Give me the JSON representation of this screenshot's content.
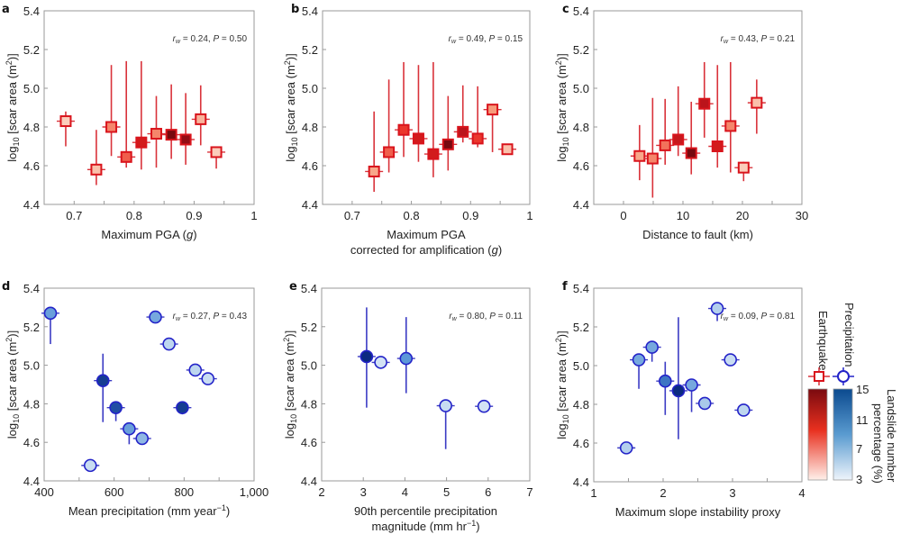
{
  "figure": {
    "legend": {
      "earthquake_label": "Earthquake",
      "precipitation_label": "Precipitation",
      "colorbar_label_line1": "Landslide number",
      "colorbar_label_line2": "percentage (%)",
      "colorbar_ticks": [
        "15",
        "11",
        "7",
        "3"
      ],
      "colorbar_range": [
        3,
        15
      ],
      "earthquake_colors": [
        "#fff0ea",
        "#7a0a0f"
      ],
      "precipitation_colors": [
        "#eef4fb",
        "#0b4a8f"
      ]
    },
    "colors": {
      "eq_border": "#d9141c",
      "eq_errbar": "#d9323a",
      "pr_border": "#2323c8",
      "pr_errbar": "#3b3bc4",
      "frame": "#9a9a9a"
    }
  },
  "chart_data": [
    {
      "panel": "a",
      "type": "scatter",
      "marker": "square",
      "xlabel": "Maximum PGA (g)",
      "xlabel_parts": [
        "Maximum PGA (",
        "g",
        ")"
      ],
      "ylabel": "log10 [scar area (m2)]",
      "xlim": [
        0.65,
        1.0
      ],
      "ylim": [
        4.4,
        5.4
      ],
      "xticks": [
        0.7,
        0.8,
        0.9,
        1
      ],
      "xtick_labels": [
        "0.7",
        "0.8",
        "0.9",
        "1"
      ],
      "xminor": [
        0.75,
        0.85,
        0.95
      ],
      "yticks": [
        4.4,
        4.6,
        4.8,
        5.0,
        5.2,
        5.4
      ],
      "ytick_labels": [
        "4.4",
        "4.6",
        "4.8",
        "5.0",
        "5.2",
        "5.4"
      ],
      "stat_r": "0.24",
      "stat_p": "0.50",
      "points": [
        {
          "x": 0.686,
          "y": 4.83,
          "ylo": 4.7,
          "yhi": 4.88,
          "shade": 0.1
        },
        {
          "x": 0.737,
          "y": 4.58,
          "ylo": 4.5,
          "yhi": 4.785,
          "shade": 0.15
        },
        {
          "x": 0.762,
          "y": 4.8,
          "ylo": 4.65,
          "yhi": 5.12,
          "shade": 0.35
        },
        {
          "x": 0.787,
          "y": 4.645,
          "ylo": 4.59,
          "yhi": 5.14,
          "shade": 0.45
        },
        {
          "x": 0.812,
          "y": 4.72,
          "ylo": 4.58,
          "yhi": 5.14,
          "shade": 0.7
        },
        {
          "x": 0.837,
          "y": 4.765,
          "ylo": 4.59,
          "yhi": 4.96,
          "shade": 0.35
        },
        {
          "x": 0.862,
          "y": 4.76,
          "ylo": 4.635,
          "yhi": 5.02,
          "shade": 0.95
        },
        {
          "x": 0.886,
          "y": 4.735,
          "ylo": 4.605,
          "yhi": 4.975,
          "shade": 0.9
        },
        {
          "x": 0.911,
          "y": 4.84,
          "ylo": 4.705,
          "yhi": 5.015,
          "shade": 0.2
        },
        {
          "x": 0.937,
          "y": 4.67,
          "ylo": 4.585,
          "yhi": 4.7,
          "shade": 0.1
        }
      ]
    },
    {
      "panel": "b",
      "type": "scatter",
      "marker": "square",
      "xlabel": "Maximum PGA corrected for amplification (g)",
      "xlabel_line1": "Maximum PGA",
      "xlabel_parts": [
        "corrected for amplification (",
        "g",
        ")"
      ],
      "ylabel": "log10 [scar area (m2)]",
      "xlim": [
        0.65,
        1.0
      ],
      "ylim": [
        4.4,
        5.4
      ],
      "xticks": [
        0.7,
        0.8,
        0.9,
        1
      ],
      "xtick_labels": [
        "0.7",
        "0.8",
        "0.9",
        "1"
      ],
      "xminor": [
        0.75,
        0.85,
        0.95
      ],
      "yticks": [
        4.4,
        4.6,
        4.8,
        5.0,
        5.2,
        5.4
      ],
      "ytick_labels": [
        "4.4",
        "4.6",
        "4.8",
        "5.0",
        "5.2",
        "5.4"
      ],
      "stat_r": "0.49",
      "stat_p": "0.15",
      "points": [
        {
          "x": 0.737,
          "y": 4.57,
          "ylo": 4.465,
          "yhi": 4.88,
          "shade": 0.25
        },
        {
          "x": 0.762,
          "y": 4.67,
          "ylo": 4.565,
          "yhi": 5.045,
          "shade": 0.45
        },
        {
          "x": 0.787,
          "y": 4.785,
          "ylo": 4.645,
          "yhi": 5.135,
          "shade": 0.55
        },
        {
          "x": 0.812,
          "y": 4.74,
          "ylo": 4.62,
          "yhi": 5.12,
          "shade": 0.7
        },
        {
          "x": 0.837,
          "y": 4.66,
          "ylo": 4.54,
          "yhi": 5.135,
          "shade": 0.7
        },
        {
          "x": 0.862,
          "y": 4.71,
          "ylo": 4.575,
          "yhi": 4.96,
          "shade": 0.95
        },
        {
          "x": 0.887,
          "y": 4.775,
          "ylo": 4.72,
          "yhi": 5.015,
          "shade": 0.8
        },
        {
          "x": 0.912,
          "y": 4.74,
          "ylo": 4.695,
          "yhi": 5.01,
          "shade": 0.55
        },
        {
          "x": 0.937,
          "y": 4.89,
          "ylo": 4.67,
          "yhi": 4.89,
          "shade": 0.3
        },
        {
          "x": 0.962,
          "y": 4.685,
          "ylo": 4.685,
          "yhi": 4.685,
          "shade": 0.15
        }
      ]
    },
    {
      "panel": "c",
      "type": "scatter",
      "marker": "square",
      "xlabel": "Distance to fault (km)",
      "ylabel": "log10 [scar area (m2)]",
      "xlim": [
        -5,
        30
      ],
      "ylim": [
        4.4,
        5.4
      ],
      "xticks": [
        0,
        10,
        20,
        30
      ],
      "xtick_labels": [
        "0",
        "10",
        "20",
        "30"
      ],
      "xminor": [
        5,
        15,
        25
      ],
      "yticks": [
        4.4,
        4.6,
        4.8,
        5.0,
        5.2,
        5.4
      ],
      "ytick_labels": [
        "4.4",
        "4.6",
        "4.8",
        "5.0",
        "5.2",
        "5.4"
      ],
      "stat_r": "0.43",
      "stat_p": "0.21",
      "points": [
        {
          "x": 2.7,
          "y": 4.65,
          "ylo": 4.525,
          "yhi": 4.81,
          "shade": 0.25
        },
        {
          "x": 4.9,
          "y": 4.637,
          "ylo": 4.435,
          "yhi": 4.95,
          "shade": 0.35
        },
        {
          "x": 7.0,
          "y": 4.705,
          "ylo": 4.605,
          "yhi": 4.945,
          "shade": 0.4
        },
        {
          "x": 9.2,
          "y": 4.735,
          "ylo": 4.65,
          "yhi": 5.01,
          "shade": 0.75
        },
        {
          "x": 11.4,
          "y": 4.665,
          "ylo": 4.555,
          "yhi": 4.93,
          "shade": 0.95
        },
        {
          "x": 13.6,
          "y": 4.92,
          "ylo": 4.745,
          "yhi": 5.135,
          "shade": 0.8
        },
        {
          "x": 15.8,
          "y": 4.7,
          "ylo": 4.59,
          "yhi": 5.12,
          "shade": 0.7
        },
        {
          "x": 18.0,
          "y": 4.805,
          "ylo": 4.565,
          "yhi": 5.135,
          "shade": 0.35
        },
        {
          "x": 20.2,
          "y": 4.59,
          "ylo": 4.52,
          "yhi": 4.62,
          "shade": 0.1
        },
        {
          "x": 22.4,
          "y": 4.925,
          "ylo": 4.765,
          "yhi": 5.045,
          "shade": 0.15
        }
      ]
    },
    {
      "panel": "d",
      "type": "scatter",
      "marker": "circle",
      "xlabel": "Mean precipitation (mm year-1)",
      "xlabel_parts": [
        "Mean precipitation (mm year",
        "−1",
        ")"
      ],
      "ylabel": "log10 [scar area (m2)]",
      "xlim": [
        400,
        1000
      ],
      "ylim": [
        4.4,
        5.4
      ],
      "xticks": [
        400,
        600,
        800,
        1000
      ],
      "xtick_labels": [
        "400",
        "600",
        "800",
        "1,000"
      ],
      "xminor": [
        500,
        700,
        900
      ],
      "yticks": [
        4.4,
        4.6,
        4.8,
        5.0,
        5.2,
        5.4
      ],
      "ytick_labels": [
        "4.4",
        "4.6",
        "4.8",
        "5.0",
        "5.2",
        "5.4"
      ],
      "stat_r": "0.27",
      "stat_p": "0.43",
      "points": [
        {
          "x": 418,
          "y": 5.27,
          "ylo": 5.11,
          "yhi": 5.27,
          "shade": 0.55
        },
        {
          "x": 532,
          "y": 4.48,
          "ylo": 4.48,
          "yhi": 4.48,
          "shade": 0.15
        },
        {
          "x": 568,
          "y": 4.92,
          "ylo": 4.705,
          "yhi": 5.06,
          "shade": 0.95
        },
        {
          "x": 605,
          "y": 4.78,
          "ylo": 4.71,
          "yhi": 4.78,
          "shade": 0.9
        },
        {
          "x": 643,
          "y": 4.67,
          "ylo": 4.59,
          "yhi": 4.67,
          "shade": 0.55
        },
        {
          "x": 680,
          "y": 4.62,
          "ylo": 4.62,
          "yhi": 4.62,
          "shade": 0.4
        },
        {
          "x": 718,
          "y": 5.25,
          "ylo": 5.22,
          "yhi": 5.25,
          "shade": 0.5
        },
        {
          "x": 757,
          "y": 5.11,
          "ylo": 5.11,
          "yhi": 5.11,
          "shade": 0.2
        },
        {
          "x": 795,
          "y": 4.78,
          "ylo": 4.745,
          "yhi": 4.78,
          "shade": 0.95
        },
        {
          "x": 832,
          "y": 4.975,
          "ylo": 4.975,
          "yhi": 4.975,
          "shade": 0.2
        },
        {
          "x": 868,
          "y": 4.93,
          "ylo": 4.93,
          "yhi": 4.93,
          "shade": 0.15
        }
      ]
    },
    {
      "panel": "e",
      "type": "scatter",
      "marker": "circle",
      "xlabel": "90th percentile precipitation magnitude (mm hr-1)",
      "xlabel_line1": "90th percentile precipitation",
      "xlabel_parts": [
        "magnitude (mm hr",
        "−1",
        ")"
      ],
      "ylabel": "log10 [scar area (m2)]",
      "xlim": [
        2,
        7
      ],
      "ylim": [
        4.4,
        5.4
      ],
      "xticks": [
        2,
        3,
        4,
        5,
        6,
        7
      ],
      "xtick_labels": [
        "2",
        "3",
        "4",
        "5",
        "6",
        "7"
      ],
      "xminor": [],
      "yticks": [
        4.4,
        4.6,
        4.8,
        5.0,
        5.2,
        5.4
      ],
      "ytick_labels": [
        "4.4",
        "4.6",
        "4.8",
        "5.0",
        "5.2",
        "5.4"
      ],
      "stat_r": "0.80",
      "stat_p": "0.11",
      "points": [
        {
          "x": 3.08,
          "y": 5.045,
          "ylo": 4.78,
          "yhi": 5.3,
          "shade": 1.0
        },
        {
          "x": 3.42,
          "y": 5.015,
          "ylo": 4.995,
          "yhi": 5.015,
          "shade": 0.1
        },
        {
          "x": 4.03,
          "y": 5.035,
          "ylo": 4.855,
          "yhi": 5.25,
          "shade": 0.6
        },
        {
          "x": 4.98,
          "y": 4.79,
          "ylo": 4.565,
          "yhi": 4.79,
          "shade": 0.15
        },
        {
          "x": 5.9,
          "y": 4.787,
          "ylo": 4.787,
          "yhi": 4.787,
          "shade": 0.1
        }
      ]
    },
    {
      "panel": "f",
      "type": "scatter",
      "marker": "circle",
      "xlabel": "Maximum slope instability proxy",
      "ylabel": "log10 [scar area (m2)]",
      "xlim": [
        1,
        4
      ],
      "ylim": [
        4.4,
        5.4
      ],
      "xticks": [
        1,
        2,
        3,
        4
      ],
      "xtick_labels": [
        "1",
        "2",
        "3",
        "4"
      ],
      "xminor": [
        1.5,
        2.5,
        3.5
      ],
      "yticks": [
        4.4,
        4.6,
        4.8,
        5.0,
        5.2,
        5.4
      ],
      "ytick_labels": [
        "4.4",
        "4.6",
        "4.8",
        "5.0",
        "5.2",
        "5.4"
      ],
      "stat_r": "0.09",
      "stat_p": "0.81",
      "points": [
        {
          "x": 1.47,
          "y": 4.575,
          "ylo": 4.575,
          "yhi": 4.575,
          "shade": 0.25
        },
        {
          "x": 1.65,
          "y": 5.03,
          "ylo": 4.88,
          "yhi": 5.03,
          "shade": 0.5
        },
        {
          "x": 1.84,
          "y": 5.095,
          "ylo": 5.02,
          "yhi": 5.095,
          "shade": 0.5
        },
        {
          "x": 2.03,
          "y": 4.92,
          "ylo": 4.745,
          "yhi": 5.02,
          "shade": 0.75
        },
        {
          "x": 2.22,
          "y": 4.87,
          "ylo": 4.62,
          "yhi": 5.25,
          "shade": 1.0
        },
        {
          "x": 2.41,
          "y": 4.9,
          "ylo": 4.76,
          "yhi": 4.93,
          "shade": 0.5
        },
        {
          "x": 2.6,
          "y": 4.805,
          "ylo": 4.805,
          "yhi": 4.805,
          "shade": 0.3
        },
        {
          "x": 2.78,
          "y": 5.295,
          "ylo": 5.23,
          "yhi": 5.295,
          "shade": 0.25
        },
        {
          "x": 2.97,
          "y": 5.03,
          "ylo": 5.03,
          "yhi": 5.03,
          "shade": 0.15
        },
        {
          "x": 3.16,
          "y": 4.77,
          "ylo": 4.77,
          "yhi": 4.77,
          "shade": 0.2
        }
      ]
    }
  ]
}
